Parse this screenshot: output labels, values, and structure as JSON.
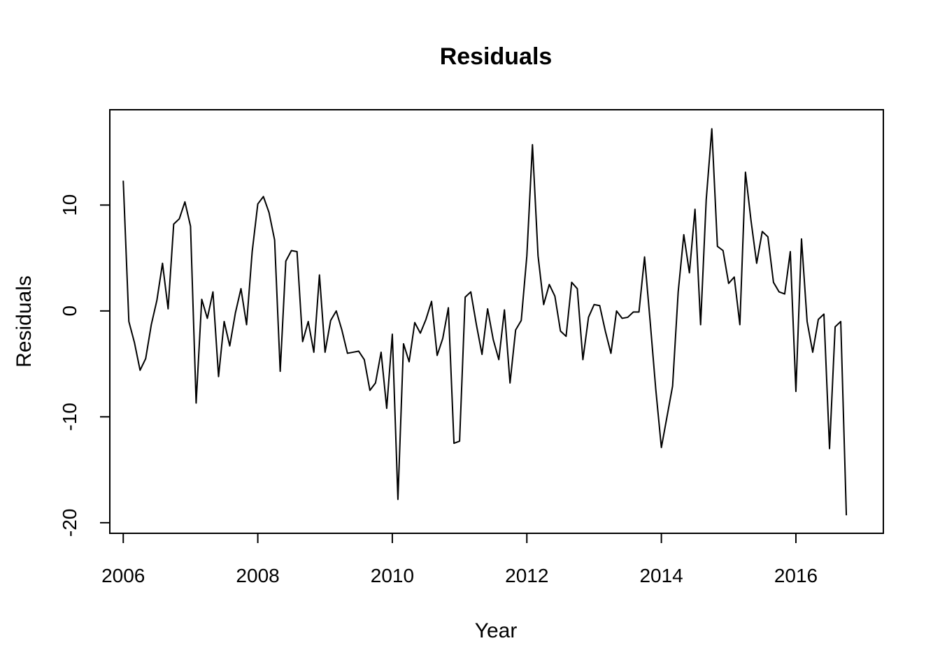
{
  "chart_data": {
    "type": "line",
    "title": "Residuals",
    "xlabel": "Year",
    "ylabel": "Residuals",
    "xlim": [
      2005.8,
      2017.3
    ],
    "ylim": [
      -21,
      19
    ],
    "xticks": [
      2006,
      2008,
      2010,
      2012,
      2014,
      2016
    ],
    "xtick_labels": [
      "2006",
      "2008",
      "2010",
      "2012",
      "2014",
      "2016"
    ],
    "yticks": [
      -20,
      -10,
      0,
      10
    ],
    "ytick_labels": [
      "-20",
      "-10",
      "0",
      "10"
    ],
    "x_start": 2006,
    "x_step": 0.083333,
    "grid": false,
    "series": [
      {
        "values": [
          12.3,
          -1.0,
          -3.0,
          -5.6,
          -4.5,
          -1.3,
          1.0,
          4.5,
          0.2,
          8.2,
          8.7,
          10.3,
          8.0,
          -8.7,
          1.1,
          -0.7,
          1.8,
          -6.2,
          -1.0,
          -3.3,
          -0.2,
          2.1,
          -1.3,
          5.6,
          10.1,
          10.8,
          9.3,
          6.7,
          -5.7,
          4.7,
          5.7,
          5.6,
          -2.9,
          -1.0,
          -3.9,
          3.4,
          -3.9,
          -0.9,
          0.0,
          -1.8,
          -4.0,
          -3.9,
          -3.8,
          -4.6,
          -7.5,
          -6.8,
          -3.9,
          -9.2,
          -2.2,
          -17.8,
          -3.1,
          -4.8,
          -1.1,
          -2.1,
          -0.8,
          0.9,
          -4.2,
          -2.6,
          0.3,
          -12.5,
          -12.3,
          1.3,
          1.8,
          -1.3,
          -4.1,
          0.2,
          -2.7,
          -4.6,
          0.1,
          -6.8,
          -1.8,
          -0.9,
          5.2,
          15.7,
          5.2,
          0.6,
          2.5,
          1.4,
          -1.9,
          -2.4,
          2.7,
          2.1,
          -4.6,
          -0.6,
          0.6,
          0.5,
          -1.9,
          -4.0,
          0.0,
          -0.7,
          -0.6,
          -0.1,
          -0.1,
          5.1,
          -1.0,
          -7.4,
          -12.9,
          -10.0,
          -7.1,
          1.8,
          7.2,
          3.6,
          9.6,
          -1.3,
          10.5,
          17.2,
          6.1,
          5.7,
          2.6,
          3.2,
          -1.3,
          13.1,
          8.5,
          4.5,
          7.5,
          7.0,
          2.7,
          1.8,
          1.6,
          5.6,
          -7.6,
          6.8,
          -1.0,
          -3.9,
          -0.8,
          -0.3,
          -13.0,
          -1.5,
          -1.0,
          -19.3
        ]
      }
    ]
  }
}
